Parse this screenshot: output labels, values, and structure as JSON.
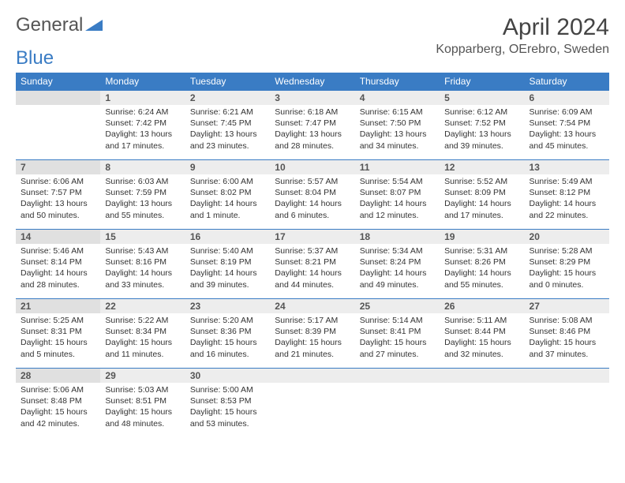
{
  "logo": {
    "text1": "General",
    "text2": "Blue"
  },
  "title": "April 2024",
  "location": "Kopparberg, OErebro, Sweden",
  "colors": {
    "header_bg": "#3a7cc4",
    "header_text": "#ffffff",
    "daynum_bg": "#ededed",
    "daynum_bg_shade": "#e0e0e0",
    "border": "#3a7cc4",
    "text": "#333333"
  },
  "weekdays": [
    "Sunday",
    "Monday",
    "Tuesday",
    "Wednesday",
    "Thursday",
    "Friday",
    "Saturday"
  ],
  "weeks": [
    [
      {
        "blank": true
      },
      {
        "n": "1",
        "sr": "6:24 AM",
        "ss": "7:42 PM",
        "dl": "13 hours and 17 minutes."
      },
      {
        "n": "2",
        "sr": "6:21 AM",
        "ss": "7:45 PM",
        "dl": "13 hours and 23 minutes."
      },
      {
        "n": "3",
        "sr": "6:18 AM",
        "ss": "7:47 PM",
        "dl": "13 hours and 28 minutes."
      },
      {
        "n": "4",
        "sr": "6:15 AM",
        "ss": "7:50 PM",
        "dl": "13 hours and 34 minutes."
      },
      {
        "n": "5",
        "sr": "6:12 AM",
        "ss": "7:52 PM",
        "dl": "13 hours and 39 minutes."
      },
      {
        "n": "6",
        "sr": "6:09 AM",
        "ss": "7:54 PM",
        "dl": "13 hours and 45 minutes."
      }
    ],
    [
      {
        "n": "7",
        "sr": "6:06 AM",
        "ss": "7:57 PM",
        "dl": "13 hours and 50 minutes."
      },
      {
        "n": "8",
        "sr": "6:03 AM",
        "ss": "7:59 PM",
        "dl": "13 hours and 55 minutes."
      },
      {
        "n": "9",
        "sr": "6:00 AM",
        "ss": "8:02 PM",
        "dl": "14 hours and 1 minute."
      },
      {
        "n": "10",
        "sr": "5:57 AM",
        "ss": "8:04 PM",
        "dl": "14 hours and 6 minutes."
      },
      {
        "n": "11",
        "sr": "5:54 AM",
        "ss": "8:07 PM",
        "dl": "14 hours and 12 minutes."
      },
      {
        "n": "12",
        "sr": "5:52 AM",
        "ss": "8:09 PM",
        "dl": "14 hours and 17 minutes."
      },
      {
        "n": "13",
        "sr": "5:49 AM",
        "ss": "8:12 PM",
        "dl": "14 hours and 22 minutes."
      }
    ],
    [
      {
        "n": "14",
        "sr": "5:46 AM",
        "ss": "8:14 PM",
        "dl": "14 hours and 28 minutes."
      },
      {
        "n": "15",
        "sr": "5:43 AM",
        "ss": "8:16 PM",
        "dl": "14 hours and 33 minutes."
      },
      {
        "n": "16",
        "sr": "5:40 AM",
        "ss": "8:19 PM",
        "dl": "14 hours and 39 minutes."
      },
      {
        "n": "17",
        "sr": "5:37 AM",
        "ss": "8:21 PM",
        "dl": "14 hours and 44 minutes."
      },
      {
        "n": "18",
        "sr": "5:34 AM",
        "ss": "8:24 PM",
        "dl": "14 hours and 49 minutes."
      },
      {
        "n": "19",
        "sr": "5:31 AM",
        "ss": "8:26 PM",
        "dl": "14 hours and 55 minutes."
      },
      {
        "n": "20",
        "sr": "5:28 AM",
        "ss": "8:29 PM",
        "dl": "15 hours and 0 minutes."
      }
    ],
    [
      {
        "n": "21",
        "sr": "5:25 AM",
        "ss": "8:31 PM",
        "dl": "15 hours and 5 minutes."
      },
      {
        "n": "22",
        "sr": "5:22 AM",
        "ss": "8:34 PM",
        "dl": "15 hours and 11 minutes."
      },
      {
        "n": "23",
        "sr": "5:20 AM",
        "ss": "8:36 PM",
        "dl": "15 hours and 16 minutes."
      },
      {
        "n": "24",
        "sr": "5:17 AM",
        "ss": "8:39 PM",
        "dl": "15 hours and 21 minutes."
      },
      {
        "n": "25",
        "sr": "5:14 AM",
        "ss": "8:41 PM",
        "dl": "15 hours and 27 minutes."
      },
      {
        "n": "26",
        "sr": "5:11 AM",
        "ss": "8:44 PM",
        "dl": "15 hours and 32 minutes."
      },
      {
        "n": "27",
        "sr": "5:08 AM",
        "ss": "8:46 PM",
        "dl": "15 hours and 37 minutes."
      }
    ],
    [
      {
        "n": "28",
        "sr": "5:06 AM",
        "ss": "8:48 PM",
        "dl": "15 hours and 42 minutes."
      },
      {
        "n": "29",
        "sr": "5:03 AM",
        "ss": "8:51 PM",
        "dl": "15 hours and 48 minutes."
      },
      {
        "n": "30",
        "sr": "5:00 AM",
        "ss": "8:53 PM",
        "dl": "15 hours and 53 minutes."
      },
      {
        "blank": true
      },
      {
        "blank": true
      },
      {
        "blank": true
      },
      {
        "blank": true
      }
    ]
  ],
  "labels": {
    "sunrise": "Sunrise: ",
    "sunset": "Sunset: ",
    "daylight": "Daylight: "
  }
}
